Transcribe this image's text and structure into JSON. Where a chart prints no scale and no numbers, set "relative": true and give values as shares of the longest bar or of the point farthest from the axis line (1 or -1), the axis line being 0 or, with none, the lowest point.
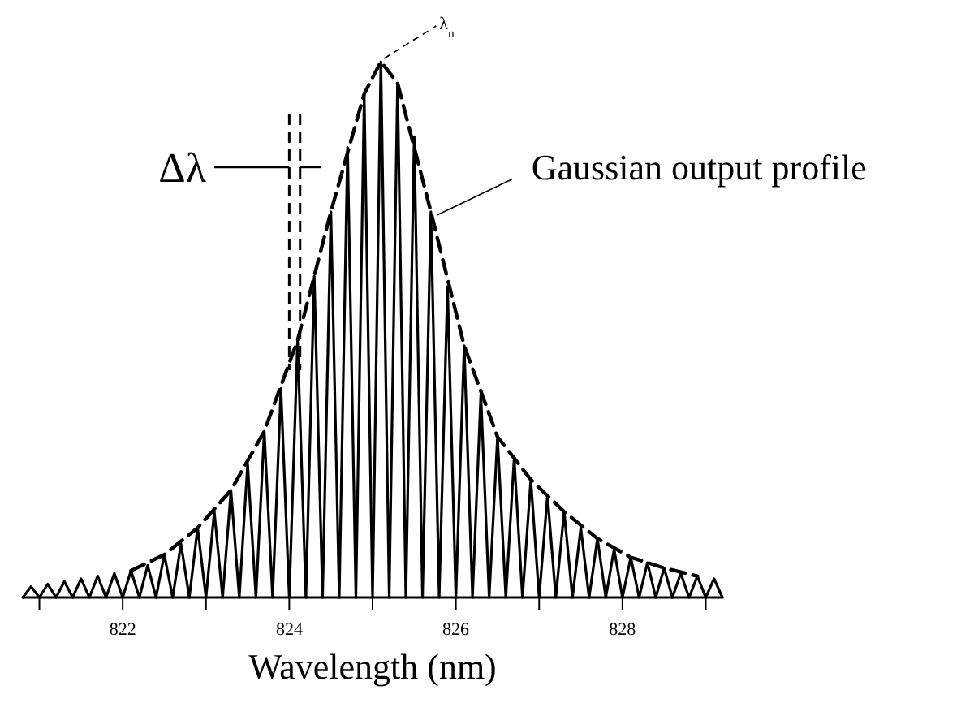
{
  "chart_data": {
    "type": "line",
    "relative": true,
    "xlabel": "Wavelength (nm)",
    "xlim": [
      820.8,
      829.2
    ],
    "xticks": [
      {
        "value": 821,
        "label": null
      },
      822,
      {
        "value": 823,
        "label": null
      },
      824,
      {
        "value": 825,
        "label": null
      },
      826,
      {
        "value": 827,
        "label": null
      },
      828,
      {
        "value": 829,
        "label": null
      }
    ],
    "annotations": [
      "Δλ",
      {
        "text": "λ$_{n}$",
        "x": 825.1,
        "y": 1
      },
      {
        "text": "Gaussian output profile",
        "x": 825.7,
        "y": 0.72
      }
    ],
    "series": [
      {
        "color": "#000000",
        "line_style": "solid",
        "x": [
          820.8,
          820.9,
          821.0,
          821.1,
          821.2,
          821.3,
          821.4,
          821.5,
          821.6,
          821.7,
          821.8,
          821.9,
          822.0,
          822.1,
          822.2,
          822.3,
          822.4,
          822.5,
          822.6,
          822.7,
          822.8,
          822.9,
          823.0,
          823.1,
          823.2,
          823.3,
          823.4,
          823.5,
          823.6,
          823.7,
          823.8,
          823.9,
          824.0,
          824.1,
          824.2,
          824.3,
          824.4,
          824.5,
          824.6,
          824.7,
          824.8,
          824.9,
          825.0,
          825.1,
          825.2,
          825.3,
          825.4,
          825.5,
          825.6,
          825.7,
          825.8,
          825.9,
          826.0,
          826.1,
          826.2,
          826.3,
          826.4,
          826.5,
          826.6,
          826.7,
          826.8,
          826.9,
          827.0,
          827.1,
          827.2,
          827.3,
          827.4,
          827.5,
          827.6,
          827.7,
          827.8,
          827.9,
          828.0,
          828.1,
          828.2,
          828.3,
          828.4,
          828.5,
          828.6,
          828.7,
          828.8,
          828.9,
          829.0,
          829.1,
          829.2
        ],
        "values": [
          0,
          0.02,
          0,
          0.025,
          0,
          0.03,
          0,
          0.035,
          0,
          0.04,
          0,
          0.045,
          0,
          0.05,
          0,
          0.06,
          0,
          0.08,
          0,
          0.1,
          0,
          0.13,
          0,
          0.16,
          0,
          0.2,
          0,
          0.25,
          0,
          0.31,
          0,
          0.39,
          0,
          0.48,
          0,
          0.6,
          0,
          0.72,
          0,
          0.84,
          0,
          0.94,
          0,
          1,
          0,
          0.96,
          0,
          0.86,
          0,
          0.72,
          0,
          0.58,
          0,
          0.47,
          0,
          0.38,
          0,
          0.3,
          0,
          0.26,
          0,
          0.22,
          0,
          0.19,
          0,
          0.16,
          0,
          0.13,
          0,
          0.11,
          0,
          0.09,
          0,
          0.075,
          0,
          0.065,
          0,
          0.055,
          0,
          0.045,
          0,
          0.04,
          0,
          0.035,
          0
        ]
      },
      {
        "color": "#000000",
        "line_style": "dashed",
        "x": [
          822.1,
          822.5,
          822.9,
          823.3,
          823.7,
          824.1,
          824.5,
          824.9,
          825.1,
          825.3,
          825.7,
          826.1,
          826.5,
          826.9,
          827.3,
          827.7,
          828.1,
          828.5,
          828.9
        ],
        "values": [
          0.05,
          0.08,
          0.13,
          0.2,
          0.31,
          0.48,
          0.72,
          0.94,
          1,
          0.96,
          0.72,
          0.47,
          0.3,
          0.22,
          0.16,
          0.11,
          0.075,
          0.055,
          0.04
        ]
      }
    ]
  }
}
